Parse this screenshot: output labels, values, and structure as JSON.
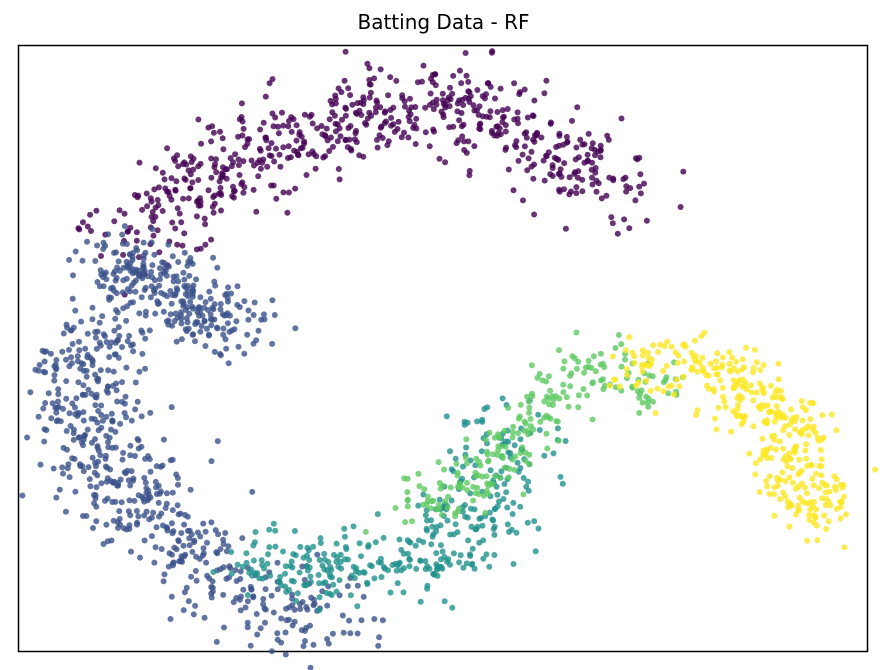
{
  "chart_data": {
    "type": "scatter",
    "title": "Batting Data - RF",
    "xlabel": "",
    "ylabel": "",
    "xlim": [
      0,
      100
    ],
    "ylim": [
      0,
      100
    ],
    "grid": false,
    "colormap": "viridis",
    "class_colors": [
      "#440154",
      "#3b528b",
      "#21918c",
      "#5ec962",
      "#fde725"
    ],
    "clusters": [
      {
        "color_index": 0,
        "count": 620,
        "path": [
          [
            12,
            68
          ],
          [
            20,
            76
          ],
          [
            30,
            84
          ],
          [
            40,
            89
          ],
          [
            50,
            90
          ],
          [
            58,
            87
          ],
          [
            66,
            80
          ],
          [
            71,
            75
          ]
        ],
        "spread": 3.6
      },
      {
        "color_index": 1,
        "count": 280,
        "path": [
          [
            12,
            66
          ],
          [
            16,
            60
          ],
          [
            22,
            56
          ],
          [
            26,
            54
          ]
        ],
        "spread": 3.0
      },
      {
        "color_index": 1,
        "count": 560,
        "path": [
          [
            10,
            53
          ],
          [
            8,
            45
          ],
          [
            9,
            35
          ],
          [
            13,
            26
          ],
          [
            19,
            17
          ],
          [
            25,
            11
          ],
          [
            31,
            7
          ],
          [
            38,
            6
          ]
        ],
        "spread": 3.6
      },
      {
        "color_index": 2,
        "count": 360,
        "path": [
          [
            26,
            16
          ],
          [
            34,
            14
          ],
          [
            42,
            13
          ],
          [
            49,
            16
          ],
          [
            54,
            21
          ],
          [
            57,
            30
          ],
          [
            56,
            38
          ]
        ],
        "spread": 3.0
      },
      {
        "color_index": 3,
        "count": 230,
        "path": [
          [
            48,
            23
          ],
          [
            54,
            29
          ],
          [
            59,
            36
          ],
          [
            64,
            44
          ],
          [
            70,
            47
          ],
          [
            76,
            42
          ]
        ],
        "spread": 2.6
      },
      {
        "color_index": 4,
        "count": 360,
        "path": [
          [
            72,
            46
          ],
          [
            78,
            48
          ],
          [
            84,
            45
          ],
          [
            89,
            38
          ],
          [
            92,
            30
          ],
          [
            94,
            22
          ]
        ],
        "spread": 2.6
      }
    ]
  }
}
